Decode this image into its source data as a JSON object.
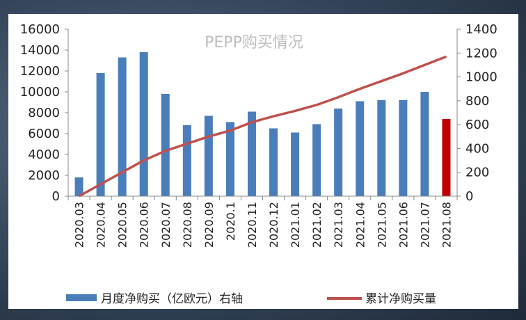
{
  "chart_data": {
    "type": "bar",
    "title": "PEPP购买情况",
    "categories": [
      "2020.03",
      "2020.04",
      "2020.05",
      "2020.06",
      "2020.07",
      "2020.08",
      "2020.09",
      "2020.1",
      "2020.11",
      "2020.12",
      "2021.01",
      "2021.02",
      "2021.03",
      "2021.04",
      "2021.05",
      "2021.06",
      "2021.07",
      "2021.08"
    ],
    "series": [
      {
        "name": "月度净购买（亿欧元）右轴",
        "type": "bar",
        "axis": "left",
        "color": "#4a7ebb",
        "values": [
          1800,
          11800,
          13300,
          13800,
          9800,
          6800,
          7700,
          7100,
          8100,
          6500,
          6100,
          6900,
          8400,
          9100,
          9200,
          9200,
          10000,
          7400
        ],
        "highlight_last_color": "#c00000"
      },
      {
        "name": "累计净购买量",
        "type": "line",
        "axis": "right",
        "color": "#c0504d",
        "values": [
          0,
          100,
          200,
          300,
          380,
          440,
          500,
          550,
          620,
          670,
          715,
          765,
          830,
          900,
          965,
          1030,
          1100,
          1170
        ]
      }
    ],
    "y_left": {
      "ylim": [
        0,
        16000
      ],
      "ticks": [
        0,
        2000,
        4000,
        6000,
        8000,
        10000,
        12000,
        14000,
        16000
      ]
    },
    "y_right": {
      "ylim": [
        0,
        1400
      ],
      "ticks": [
        0,
        200,
        400,
        600,
        800,
        1000,
        1200,
        1400
      ]
    },
    "legend": {
      "position": "bottom"
    },
    "grid": false
  }
}
